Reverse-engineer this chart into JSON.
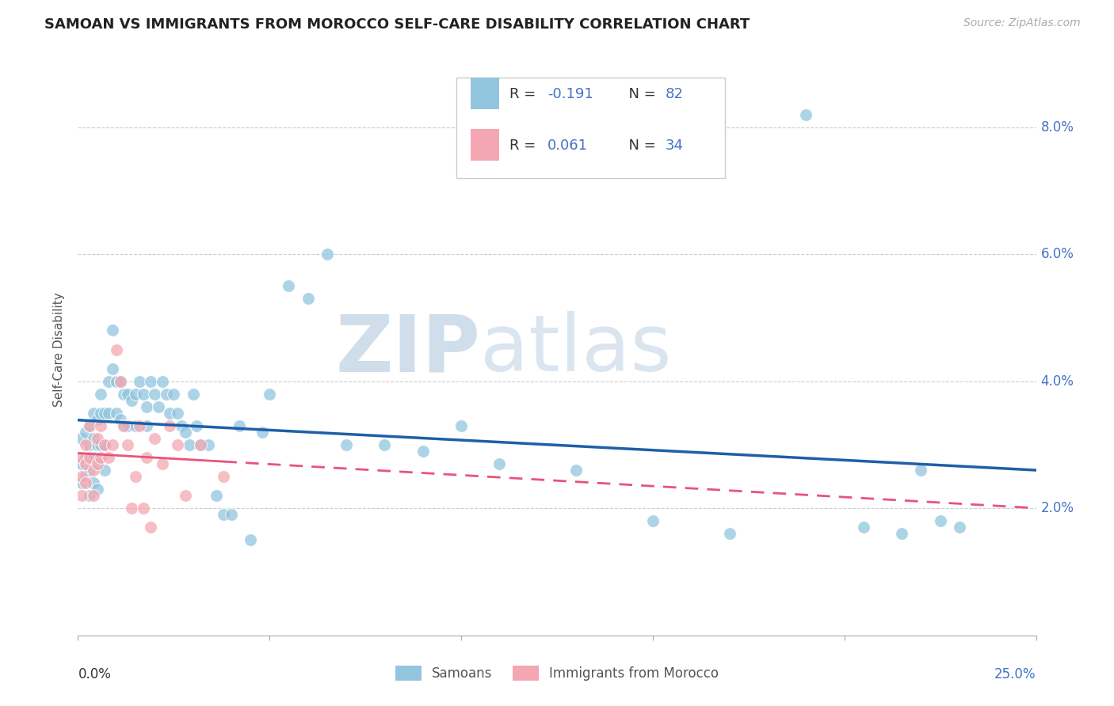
{
  "title": "SAMOAN VS IMMIGRANTS FROM MOROCCO SELF-CARE DISABILITY CORRELATION CHART",
  "source": "Source: ZipAtlas.com",
  "ylabel": "Self-Care Disability",
  "xlim": [
    0.0,
    0.25
  ],
  "ylim": [
    0.0,
    0.09
  ],
  "blue_color": "#92c5de",
  "pink_color": "#f4a7b2",
  "line_blue": "#1f5fa6",
  "line_pink": "#e8547a",
  "watermark_zip": "ZIP",
  "watermark_atlas": "atlas",
  "legend_label1": "Samoans",
  "legend_label2": "Immigrants from Morocco",
  "tick_color": "#4472c4",
  "grid_color": "#cccccc",
  "samoan_x": [
    0.001,
    0.001,
    0.001,
    0.002,
    0.002,
    0.002,
    0.003,
    0.003,
    0.003,
    0.003,
    0.004,
    0.004,
    0.004,
    0.004,
    0.005,
    0.005,
    0.005,
    0.005,
    0.006,
    0.006,
    0.006,
    0.007,
    0.007,
    0.007,
    0.008,
    0.008,
    0.009,
    0.009,
    0.01,
    0.01,
    0.011,
    0.011,
    0.012,
    0.012,
    0.013,
    0.013,
    0.014,
    0.015,
    0.015,
    0.016,
    0.017,
    0.018,
    0.018,
    0.019,
    0.02,
    0.021,
    0.022,
    0.023,
    0.024,
    0.025,
    0.026,
    0.027,
    0.028,
    0.029,
    0.03,
    0.031,
    0.032,
    0.034,
    0.036,
    0.038,
    0.04,
    0.042,
    0.045,
    0.048,
    0.05,
    0.055,
    0.06,
    0.065,
    0.07,
    0.08,
    0.09,
    0.1,
    0.11,
    0.13,
    0.15,
    0.17,
    0.19,
    0.205,
    0.215,
    0.22,
    0.225,
    0.23
  ],
  "samoan_y": [
    0.031,
    0.027,
    0.024,
    0.032,
    0.028,
    0.025,
    0.033,
    0.03,
    0.026,
    0.022,
    0.035,
    0.031,
    0.028,
    0.024,
    0.034,
    0.03,
    0.027,
    0.023,
    0.038,
    0.035,
    0.03,
    0.035,
    0.03,
    0.026,
    0.04,
    0.035,
    0.048,
    0.042,
    0.04,
    0.035,
    0.04,
    0.034,
    0.038,
    0.033,
    0.038,
    0.033,
    0.037,
    0.038,
    0.033,
    0.04,
    0.038,
    0.036,
    0.033,
    0.04,
    0.038,
    0.036,
    0.04,
    0.038,
    0.035,
    0.038,
    0.035,
    0.033,
    0.032,
    0.03,
    0.038,
    0.033,
    0.03,
    0.03,
    0.022,
    0.019,
    0.019,
    0.033,
    0.015,
    0.032,
    0.038,
    0.055,
    0.053,
    0.06,
    0.03,
    0.03,
    0.029,
    0.033,
    0.027,
    0.026,
    0.018,
    0.016,
    0.082,
    0.017,
    0.016,
    0.026,
    0.018,
    0.017
  ],
  "morocco_x": [
    0.001,
    0.001,
    0.001,
    0.002,
    0.002,
    0.002,
    0.003,
    0.003,
    0.004,
    0.004,
    0.005,
    0.005,
    0.006,
    0.006,
    0.007,
    0.008,
    0.009,
    0.01,
    0.011,
    0.012,
    0.013,
    0.014,
    0.015,
    0.016,
    0.017,
    0.018,
    0.019,
    0.02,
    0.022,
    0.024,
    0.026,
    0.028,
    0.032,
    0.038
  ],
  "morocco_y": [
    0.028,
    0.025,
    0.022,
    0.03,
    0.027,
    0.024,
    0.033,
    0.028,
    0.026,
    0.022,
    0.031,
    0.027,
    0.033,
    0.028,
    0.03,
    0.028,
    0.03,
    0.045,
    0.04,
    0.033,
    0.03,
    0.02,
    0.025,
    0.033,
    0.02,
    0.028,
    0.017,
    0.031,
    0.027,
    0.033,
    0.03,
    0.022,
    0.03,
    0.025
  ]
}
